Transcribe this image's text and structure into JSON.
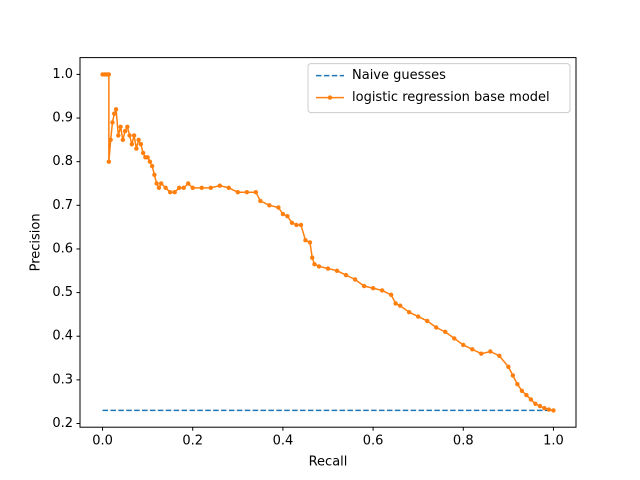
{
  "chart_data": {
    "type": "line",
    "x_label": "Recall",
    "y_label": "Precision",
    "xlim": [
      -0.05,
      1.05
    ],
    "ylim": [
      0.1915,
      1.0385
    ],
    "xticks": [
      {
        "value": 0,
        "label": "0.0"
      },
      0.2,
      0.4,
      0.6,
      0.8,
      {
        "value": 1,
        "label": "1.0"
      }
    ],
    "yticks": [
      0.2,
      0.3,
      0.4,
      0.5,
      0.6,
      0.7,
      0.8,
      0.9,
      {
        "value": 1,
        "label": "1.0"
      }
    ],
    "legend": "upper right",
    "series": [
      {
        "name": "Naive guesses",
        "color": "#1f77b4",
        "linestyle": "dashed",
        "marker": false,
        "x": [
          0,
          1
        ],
        "values": [
          0.23,
          0.23
        ]
      },
      {
        "name": "logistic regression base model",
        "color": "#ff7f0e",
        "linestyle": "solid",
        "marker": true,
        "x": [
          0,
          0.005,
          0.01,
          0.014,
          0.014,
          0.018,
          0.022,
          0.026,
          0.03,
          0.035,
          0.04,
          0.045,
          0.05,
          0.055,
          0.06,
          0.065,
          0.07,
          0.075,
          0.08,
          0.085,
          0.09,
          0.095,
          0.1,
          0.105,
          0.11,
          0.115,
          0.12,
          0.125,
          0.13,
          0.14,
          0.15,
          0.16,
          0.17,
          0.18,
          0.19,
          0.2,
          0.22,
          0.24,
          0.26,
          0.28,
          0.3,
          0.32,
          0.34,
          0.35,
          0.37,
          0.39,
          0.4,
          0.41,
          0.42,
          0.43,
          0.44,
          0.45,
          0.46,
          0.465,
          0.47,
          0.48,
          0.5,
          0.52,
          0.54,
          0.56,
          0.58,
          0.6,
          0.62,
          0.64,
          0.65,
          0.66,
          0.68,
          0.7,
          0.72,
          0.74,
          0.76,
          0.78,
          0.8,
          0.82,
          0.84,
          0.86,
          0.88,
          0.9,
          0.91,
          0.92,
          0.93,
          0.94,
          0.95,
          0.96,
          0.97,
          0.98,
          0.99,
          1.0
        ],
        "values": [
          1,
          1,
          1,
          1,
          0.8,
          0.85,
          0.89,
          0.91,
          0.92,
          0.86,
          0.88,
          0.85,
          0.87,
          0.88,
          0.86,
          0.84,
          0.86,
          0.83,
          0.85,
          0.84,
          0.82,
          0.81,
          0.81,
          0.8,
          0.79,
          0.77,
          0.75,
          0.74,
          0.75,
          0.74,
          0.73,
          0.73,
          0.74,
          0.74,
          0.75,
          0.74,
          0.74,
          0.74,
          0.745,
          0.74,
          0.73,
          0.73,
          0.73,
          0.71,
          0.7,
          0.695,
          0.68,
          0.675,
          0.66,
          0.655,
          0.655,
          0.62,
          0.615,
          0.58,
          0.565,
          0.56,
          0.555,
          0.55,
          0.54,
          0.53,
          0.515,
          0.51,
          0.505,
          0.495,
          0.475,
          0.47,
          0.455,
          0.445,
          0.435,
          0.42,
          0.41,
          0.395,
          0.38,
          0.37,
          0.36,
          0.365,
          0.355,
          0.33,
          0.31,
          0.29,
          0.275,
          0.265,
          0.255,
          0.245,
          0.24,
          0.235,
          0.232,
          0.23
        ]
      }
    ]
  }
}
